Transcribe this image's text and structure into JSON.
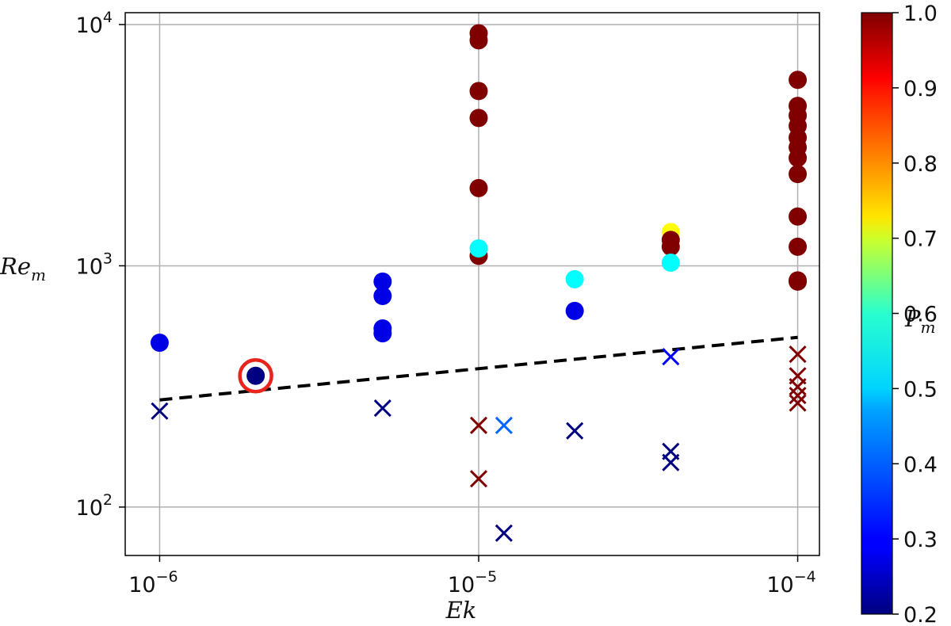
{
  "chart_data": {
    "type": "scatter",
    "xlabel": "Ek",
    "ylabel": "Re",
    "ylabel_sub": "m",
    "colorbar_label": "P",
    "colorbar_label_sub": "m",
    "xscale": "log",
    "yscale": "log",
    "xlim": [
      7.8e-07,
      0.000117
    ],
    "ylim": [
      63,
      11200
    ],
    "grid": true,
    "x_ticks": [
      {
        "value": 1e-06,
        "base": "10",
        "exp": "−6"
      },
      {
        "value": 1e-05,
        "base": "10",
        "exp": "−5"
      },
      {
        "value": 0.0001,
        "base": "10",
        "exp": "−4"
      }
    ],
    "y_ticks": [
      {
        "value": 100,
        "base": "10",
        "exp": "2"
      },
      {
        "value": 1000,
        "base": "10",
        "exp": "3"
      },
      {
        "value": 10000,
        "base": "10",
        "exp": "4"
      }
    ],
    "colorbar": {
      "colormap": "jet",
      "range": [
        0.2,
        1.0
      ],
      "ticks": [
        "0.2",
        "0.3",
        "0.4",
        "0.5",
        "0.6",
        "0.7",
        "0.8",
        "0.9",
        "1.0"
      ]
    },
    "dynamo_points": [
      {
        "ek": 1e-06,
        "rem": 480,
        "pm": 0.28
      },
      {
        "ek": 2e-06,
        "rem": 350,
        "pm": 0.2
      },
      {
        "ek": 5e-06,
        "rem": 860,
        "pm": 0.28
      },
      {
        "ek": 5e-06,
        "rem": 750,
        "pm": 0.28
      },
      {
        "ek": 5e-06,
        "rem": 550,
        "pm": 0.28
      },
      {
        "ek": 5e-06,
        "rem": 525,
        "pm": 0.28
      },
      {
        "ek": 1e-05,
        "rem": 9200,
        "pm": 1.0
      },
      {
        "ek": 1e-05,
        "rem": 8600,
        "pm": 1.0
      },
      {
        "ek": 1e-05,
        "rem": 5300,
        "pm": 1.0
      },
      {
        "ek": 1e-05,
        "rem": 4100,
        "pm": 1.0
      },
      {
        "ek": 1e-05,
        "rem": 2100,
        "pm": 1.0
      },
      {
        "ek": 1e-05,
        "rem": 1100,
        "pm": 1.0
      },
      {
        "ek": 1e-05,
        "rem": 1180,
        "pm": 0.5
      },
      {
        "ek": 2e-05,
        "rem": 880,
        "pm": 0.5
      },
      {
        "ek": 2e-05,
        "rem": 650,
        "pm": 0.28
      },
      {
        "ek": 4e-05,
        "rem": 1380,
        "pm": 0.7
      },
      {
        "ek": 4e-05,
        "rem": 1280,
        "pm": 1.0
      },
      {
        "ek": 4e-05,
        "rem": 1200,
        "pm": 1.0
      },
      {
        "ek": 4e-05,
        "rem": 1030,
        "pm": 0.5
      },
      {
        "ek": 0.0001,
        "rem": 5900,
        "pm": 1.0
      },
      {
        "ek": 0.0001,
        "rem": 4600,
        "pm": 1.0
      },
      {
        "ek": 0.0001,
        "rem": 4200,
        "pm": 1.0
      },
      {
        "ek": 0.0001,
        "rem": 3800,
        "pm": 1.0
      },
      {
        "ek": 0.0001,
        "rem": 3400,
        "pm": 1.0
      },
      {
        "ek": 0.0001,
        "rem": 3100,
        "pm": 1.0
      },
      {
        "ek": 0.0001,
        "rem": 2800,
        "pm": 1.0
      },
      {
        "ek": 0.0001,
        "rem": 2400,
        "pm": 1.0
      },
      {
        "ek": 0.0001,
        "rem": 1600,
        "pm": 1.0
      },
      {
        "ek": 0.0001,
        "rem": 1200,
        "pm": 1.0
      },
      {
        "ek": 0.0001,
        "rem": 870,
        "pm": 1.0
      },
      {
        "ek": 0.0001,
        "rem": 860,
        "pm": 1.0
      }
    ],
    "failed_points": [
      {
        "ek": 1e-06,
        "rem": 250,
        "pm": 0.2
      },
      {
        "ek": 5e-06,
        "rem": 257,
        "pm": 0.2
      },
      {
        "ek": 1e-05,
        "rem": 218,
        "pm": 1.0
      },
      {
        "ek": 1e-05,
        "rem": 131,
        "pm": 1.0
      },
      {
        "ek": 1.2e-05,
        "rem": 218,
        "pm": 0.38
      },
      {
        "ek": 1.2e-05,
        "rem": 78,
        "pm": 0.2
      },
      {
        "ek": 2e-05,
        "rem": 207,
        "pm": 0.2
      },
      {
        "ek": 4e-05,
        "rem": 420,
        "pm": 0.3
      },
      {
        "ek": 4e-05,
        "rem": 170,
        "pm": 0.2
      },
      {
        "ek": 4e-05,
        "rem": 153,
        "pm": 0.2
      },
      {
        "ek": 0.0001,
        "rem": 430,
        "pm": 1.0
      },
      {
        "ek": 0.0001,
        "rem": 350,
        "pm": 1.0
      },
      {
        "ek": 0.0001,
        "rem": 315,
        "pm": 1.0
      },
      {
        "ek": 0.0001,
        "rem": 290,
        "pm": 1.0
      },
      {
        "ek": 0.0001,
        "rem": 270,
        "pm": 1.0
      }
    ],
    "highlighted_point": {
      "ek": 2e-06,
      "rem": 350,
      "ring_color": "#e8241c"
    },
    "threshold_line": {
      "style": "dashed",
      "color": "#000000",
      "points": [
        {
          "ek": 1e-06,
          "rem": 278
        },
        {
          "ek": 0.0001,
          "rem": 505
        }
      ]
    }
  }
}
